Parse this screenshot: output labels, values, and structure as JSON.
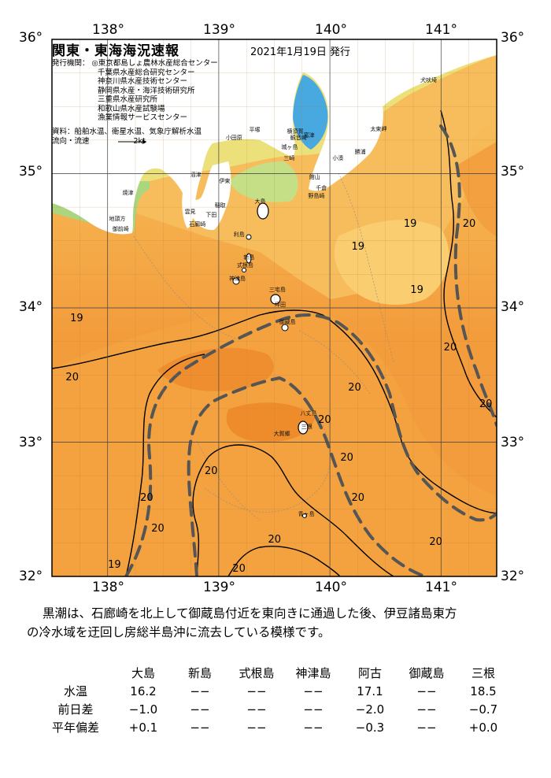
{
  "title": "関東・東海海況速報",
  "issued": "2021年1月19日 発行",
  "issuers": [
    "発行機関：  ◎東京都島しょ農林水産総合センター",
    "千葉県水産総合研究センター",
    "神奈川県水産技術センター",
    "静岡県水産・海洋技術研究所",
    "三重県水産研究所",
    "和歌山県水産試験場",
    "漁業情報サービスセンター"
  ],
  "sources": "資料：船舶水温、衛星水温、気象庁解析水温",
  "flow_legend": "流向・流速",
  "flow_unit": "2kt",
  "axes": {
    "lon_labels": [
      "138°",
      "139°",
      "140°",
      "141°"
    ],
    "lat_labels": [
      "36°",
      "35°",
      "34°",
      "33°",
      "32°"
    ],
    "lon_range": [
      137.5,
      141.5
    ],
    "lat_range": [
      32,
      36
    ]
  },
  "places": [
    {
      "name": "犬吠埼",
      "lon": 140.87,
      "lat": 35.7
    },
    {
      "name": "太東岬",
      "lon": 140.42,
      "lat": 35.34
    },
    {
      "name": "勝浦",
      "lon": 140.28,
      "lat": 35.17
    },
    {
      "name": "小湊",
      "lon": 140.08,
      "lat": 35.12
    },
    {
      "name": "館山",
      "lon": 139.87,
      "lat": 34.98
    },
    {
      "name": "千倉",
      "lon": 139.93,
      "lat": 34.9
    },
    {
      "name": "野島崎",
      "lon": 139.86,
      "lat": 34.84
    },
    {
      "name": "富津",
      "lon": 139.82,
      "lat": 35.29
    },
    {
      "name": "横須賀",
      "lon": 139.67,
      "lat": 35.32
    },
    {
      "name": "観音崎",
      "lon": 139.7,
      "lat": 35.27
    },
    {
      "name": "城ヶ島",
      "lon": 139.62,
      "lat": 35.2
    },
    {
      "name": "三崎",
      "lon": 139.64,
      "lat": 35.12
    },
    {
      "name": "平塚",
      "lon": 139.33,
      "lat": 35.33
    },
    {
      "name": "小田原",
      "lon": 139.12,
      "lat": 35.27
    },
    {
      "name": "伊東",
      "lon": 139.06,
      "lat": 34.95
    },
    {
      "name": "沼津",
      "lon": 138.8,
      "lat": 35.0
    },
    {
      "name": "焼津",
      "lon": 138.19,
      "lat": 34.86
    },
    {
      "name": "地頭方",
      "lon": 138.07,
      "lat": 34.67
    },
    {
      "name": "御前崎",
      "lon": 138.1,
      "lat": 34.59
    },
    {
      "name": "稲取",
      "lon": 139.02,
      "lat": 34.77
    },
    {
      "name": "下田",
      "lon": 138.94,
      "lat": 34.7
    },
    {
      "name": "雲見",
      "lon": 138.75,
      "lat": 34.72
    },
    {
      "name": "石廊崎",
      "lon": 138.79,
      "lat": 34.63
    },
    {
      "name": "大島",
      "lon": 139.38,
      "lat": 34.8
    },
    {
      "name": "利島",
      "lon": 139.19,
      "lat": 34.55
    },
    {
      "name": "新島",
      "lon": 139.28,
      "lat": 34.38
    },
    {
      "name": "式根島",
      "lon": 139.22,
      "lat": 34.32
    },
    {
      "name": "神津島",
      "lon": 139.15,
      "lat": 34.22
    },
    {
      "name": "三宅島",
      "lon": 139.51,
      "lat": 34.14
    },
    {
      "name": "坪田",
      "lon": 139.56,
      "lat": 34.03
    },
    {
      "name": "御蔵島",
      "lon": 139.6,
      "lat": 33.9
    },
    {
      "name": "八丈島",
      "lon": 139.79,
      "lat": 33.22
    },
    {
      "name": "大賀郷",
      "lon": 139.55,
      "lat": 33.07
    },
    {
      "name": "三根",
      "lon": 139.8,
      "lat": 33.12
    },
    {
      "name": "青ヶ島",
      "lon": 139.77,
      "lat": 32.47
    }
  ],
  "isotherm_labels": [
    {
      "text": "19",
      "lon": 140.72,
      "lat": 34.62
    },
    {
      "text": "19",
      "lon": 140.25,
      "lat": 34.45
    },
    {
      "text": "19",
      "lon": 140.78,
      "lat": 34.13
    },
    {
      "text": "20",
      "lon": 141.25,
      "lat": 34.62
    },
    {
      "text": "19",
      "lon": 137.72,
      "lat": 33.92
    },
    {
      "text": "20",
      "lon": 141.08,
      "lat": 33.7
    },
    {
      "text": "20",
      "lon": 140.22,
      "lat": 33.4
    },
    {
      "text": "20",
      "lon": 141.4,
      "lat": 33.28
    },
    {
      "text": "20",
      "lon": 137.68,
      "lat": 33.48
    },
    {
      "text": "20",
      "lon": 139.95,
      "lat": 33.16
    },
    {
      "text": "20",
      "lon": 140.15,
      "lat": 32.88
    },
    {
      "text": "20",
      "lon": 138.93,
      "lat": 32.78
    },
    {
      "text": "20",
      "lon": 140.25,
      "lat": 32.58
    },
    {
      "text": "20",
      "lon": 138.35,
      "lat": 32.58
    },
    {
      "text": "20",
      "lon": 138.45,
      "lat": 32.35
    },
    {
      "text": "20",
      "lon": 139.5,
      "lat": 32.27
    },
    {
      "text": "20",
      "lon": 140.95,
      "lat": 32.25
    },
    {
      "text": "19",
      "lon": 138.06,
      "lat": 32.08
    },
    {
      "text": "20",
      "lon": 139.18,
      "lat": 32.05
    }
  ],
  "summary": [
    "黒潮は、石廊崎を北上して御蔵島付近を東向きに通過した後、伊豆諸島東方",
    "の冷水域を迂回し房総半島沖に流去している模様です。"
  ],
  "table": {
    "columns": [
      "大島",
      "新島",
      "式根島",
      "神津島",
      "阿古",
      "御蔵島",
      "三根"
    ],
    "rows": [
      {
        "label": "水温",
        "values": [
          "16.2",
          "−−",
          "−−",
          "−−",
          "17.1",
          "−−",
          "18.5"
        ]
      },
      {
        "label": "前日差",
        "values": [
          "−1.0",
          "−−",
          "−−",
          "−−",
          "−2.0",
          "−−",
          "−0.7"
        ]
      },
      {
        "label": "平年偏差",
        "values": [
          "+0.1",
          "−−",
          "−−",
          "−−",
          "−0.3",
          "−−",
          "+0.0"
        ]
      }
    ]
  },
  "colors": {
    "ocean_warm": "#f29a38",
    "ocean_mid": "#f7b24e",
    "ocean_cool": "#f9cf6e",
    "coastal": "#e6e27a",
    "bay_blue": "#3aa3e0",
    "land": "#ffffff",
    "current_line": "#555555"
  }
}
